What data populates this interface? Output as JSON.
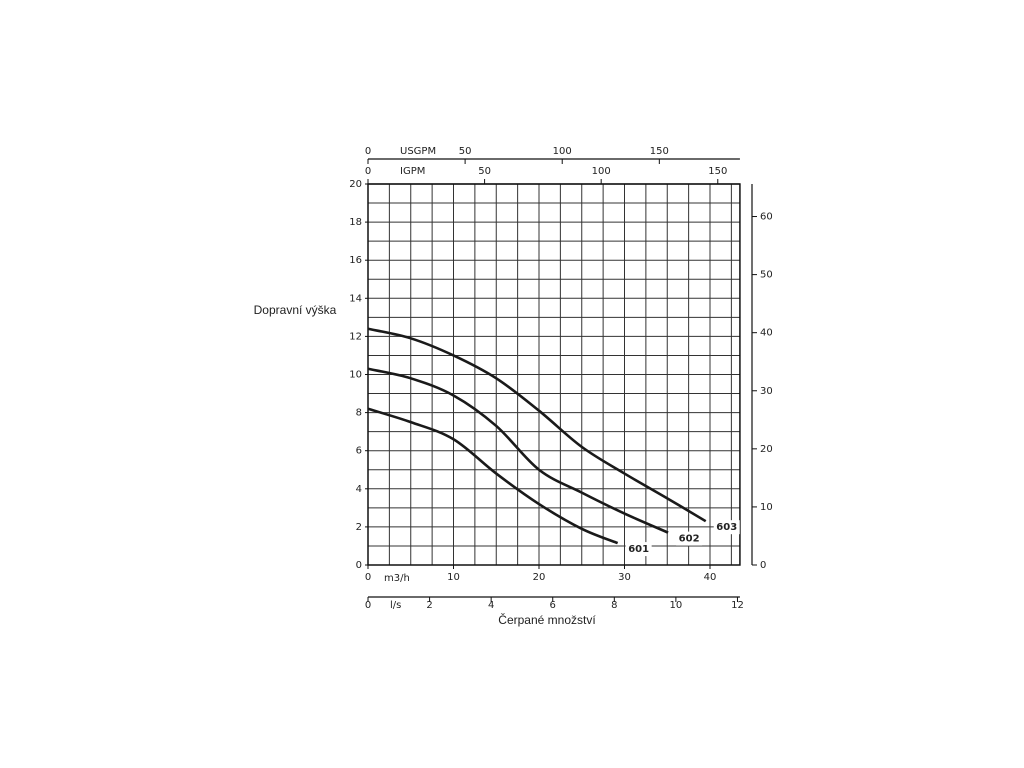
{
  "chart_data": {
    "type": "line",
    "y_label": "Dopravní výška",
    "x_label": "Čerpané množství",
    "x_unit": "m3/h",
    "xlim": [
      0,
      43.5
    ],
    "xticks": [
      0,
      10,
      20,
      30,
      40
    ],
    "ylim": [
      0,
      20
    ],
    "yticks": [
      0,
      2,
      4,
      6,
      8,
      10,
      12,
      14,
      16,
      18,
      20
    ],
    "y2lim": [
      0,
      65.6
    ],
    "y2ticks": [
      0,
      10,
      20,
      30,
      40,
      50,
      60
    ],
    "grid": true,
    "xgrid": [
      2.5,
      5,
      7.5,
      10,
      12.5,
      15,
      17.5,
      20,
      22.5,
      25,
      27.5,
      30,
      32.5,
      35,
      37.5,
      40,
      42.5
    ],
    "ygrid": [
      1,
      2,
      3,
      4,
      5,
      6,
      7,
      8,
      9,
      10,
      11,
      12,
      13,
      14,
      15,
      16,
      17,
      18,
      19
    ],
    "secondary_x_axes": [
      {
        "label": "USGPM",
        "position": "top",
        "xlim": [
          0,
          191.5
        ],
        "xticks": [
          0,
          50,
          100,
          150
        ]
      },
      {
        "label": "IGPM",
        "position": "top",
        "xlim": [
          0,
          159.5
        ],
        "xticks": [
          0,
          50,
          100,
          150
        ]
      },
      {
        "label": "l/s",
        "position": "bottom",
        "xlim": [
          0,
          12.08
        ],
        "xticks": [
          0,
          2,
          4,
          6,
          8,
          10,
          12
        ]
      }
    ],
    "series": [
      {
        "name": "601",
        "color": "#1a1a1a",
        "x": [
          0,
          5,
          10,
          15,
          20,
          25,
          29.2
        ],
        "values": [
          8.2,
          7.5,
          6.6,
          4.8,
          3.2,
          1.9,
          1.15
        ]
      },
      {
        "name": "602",
        "color": "#1a1a1a",
        "x": [
          0,
          5,
          10,
          15,
          20,
          25,
          30,
          35.1
        ],
        "values": [
          10.3,
          9.8,
          8.9,
          7.3,
          5.0,
          3.8,
          2.7,
          1.7
        ]
      },
      {
        "name": "603",
        "color": "#1a1a1a",
        "x": [
          0,
          5,
          10,
          15,
          20,
          25,
          30,
          35,
          39.5
        ],
        "values": [
          12.4,
          11.9,
          11.0,
          9.8,
          8.1,
          6.2,
          4.8,
          3.5,
          2.3
        ]
      }
    ]
  }
}
